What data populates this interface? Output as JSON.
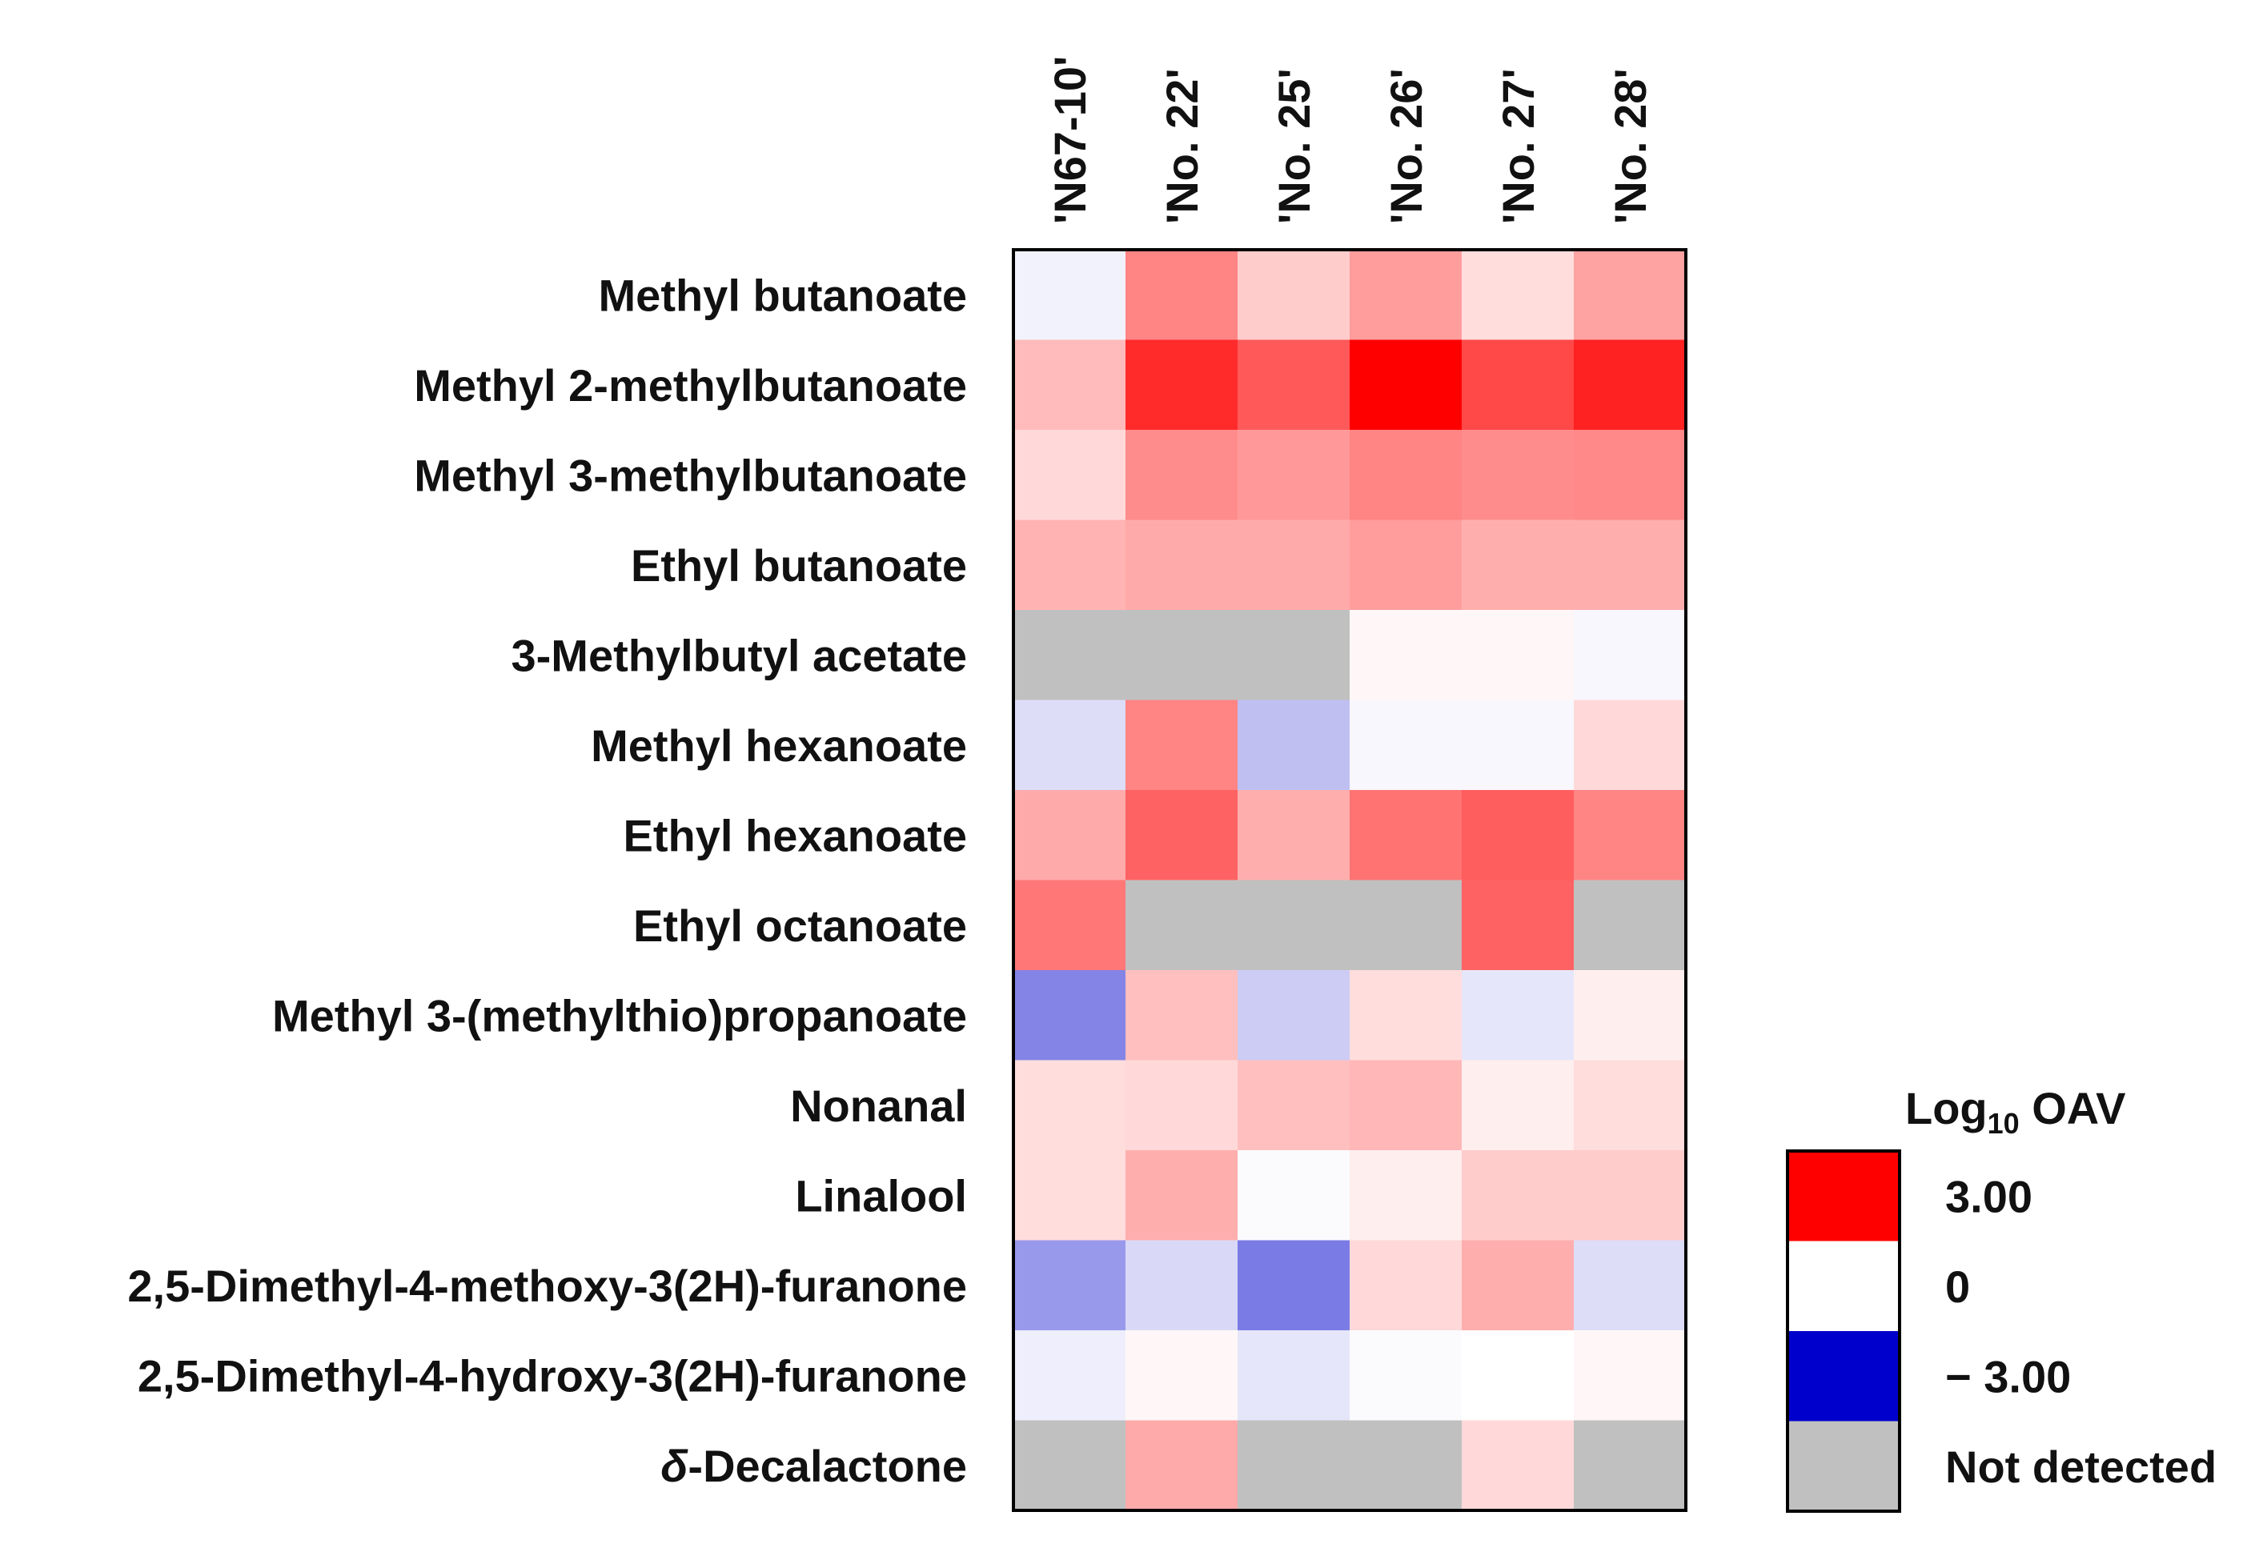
{
  "chart_data": {
    "type": "heatmap",
    "title": "",
    "columns": [
      "'N67-10'",
      "'No. 22'",
      "'No. 25'",
      "'No. 26'",
      "'No. 27'",
      "'No. 28'"
    ],
    "rows": [
      "Methyl butanoate",
      "Methyl 2-methylbutanoate",
      "Methyl 3-methylbutanoate",
      "Ethyl butanoate",
      "3-Methylbutyl acetate",
      "Methyl hexanoate",
      "Ethyl hexanoate",
      "Ethyl octanoate",
      "Methyl 3-(methylthio)propanoate",
      "Nonanal",
      "Linalool",
      "2,5-Dimethyl-4-methoxy-3(2H)-furanone",
      "2,5-Dimethyl-4-hydroxy-3(2H)-furanone",
      "δ-Decalactone"
    ],
    "row_label_parts": {
      "13": {
        "italic": "δ",
        "rest": "-Decalactone"
      }
    },
    "values": [
      [
        -0.15,
        1.45,
        0.6,
        1.15,
        0.4,
        1.1
      ],
      [
        0.8,
        2.5,
        1.95,
        3.0,
        2.15,
        2.6
      ],
      [
        0.45,
        1.35,
        1.2,
        1.45,
        1.35,
        1.4
      ],
      [
        0.9,
        1.0,
        1.0,
        1.15,
        0.95,
        0.95
      ],
      [
        null,
        null,
        null,
        0.1,
        0.1,
        -0.1
      ],
      [
        -0.4,
        1.45,
        -0.75,
        -0.1,
        -0.1,
        0.45
      ],
      [
        1.0,
        1.85,
        0.95,
        1.65,
        1.9,
        1.45
      ],
      [
        1.6,
        null,
        null,
        null,
        1.85,
        null
      ],
      [
        -1.45,
        0.75,
        -0.6,
        0.4,
        -0.3,
        0.2
      ],
      [
        0.4,
        0.45,
        0.75,
        0.85,
        0.2,
        0.4
      ],
      [
        0.4,
        0.95,
        -0.05,
        0.2,
        0.6,
        0.6
      ],
      [
        -1.2,
        -0.45,
        -1.55,
        0.45,
        0.95,
        -0.4
      ],
      [
        -0.2,
        0.1,
        -0.3,
        -0.05,
        0.0,
        0.1
      ],
      [
        null,
        1.0,
        null,
        null,
        0.45,
        null
      ]
    ],
    "value_range": [
      -3.0,
      3.0
    ],
    "colors": {
      "high": "#ff0000",
      "mid": "#ffffff",
      "low": "#0000cc",
      "not_detected": "#c0c0c0"
    },
    "legend": {
      "title_main": "Log",
      "title_sub": "10",
      "title_suffix": " OAV",
      "entries": [
        {
          "label": "3.00",
          "color": "#ff0000"
        },
        {
          "label": "0",
          "color": "#ffffff"
        },
        {
          "label": "− 3.00",
          "color": "#0000cc"
        },
        {
          "label": "Not detected",
          "color": "#c0c0c0"
        }
      ]
    }
  }
}
